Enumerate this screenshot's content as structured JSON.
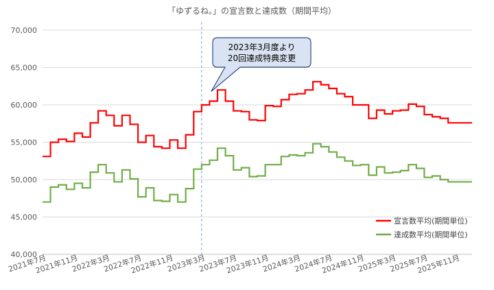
{
  "chart_data": {
    "type": "line",
    "title": "「ゆずるね。」の宣言数と達成数（期間平均）",
    "xlabel": "",
    "ylabel": "",
    "ylim": [
      40000,
      70000
    ],
    "yticks": [
      40000,
      45000,
      50000,
      55000,
      60000,
      65000,
      70000
    ],
    "ytick_labels": [
      "40,000",
      "45,000",
      "50,000",
      "55,000",
      "60,000",
      "65,000",
      "70,000"
    ],
    "step": true,
    "grid": "horizontal",
    "legend_position": "bottom-right",
    "x": [
      "2021年7月",
      "2021年8月",
      "2021年9月",
      "2021年10月",
      "2021年11月",
      "2021年12月",
      "2022年1月",
      "2022年2月",
      "2022年3月",
      "2022年4月",
      "2022年5月",
      "2022年6月",
      "2022年7月",
      "2022年8月",
      "2022年9月",
      "2022年10月",
      "2022年11月",
      "2022年12月",
      "2023年1月",
      "2023年2月",
      "2023年3月",
      "2023年4月",
      "2023年5月",
      "2023年6月",
      "2023年7月",
      "2023年8月",
      "2023年9月",
      "2023年10月",
      "2023年11月",
      "2023年12月",
      "2024年1月",
      "2024年2月",
      "2024年3月",
      "2024年4月",
      "2024年5月",
      "2024年6月",
      "2024年7月",
      "2024年8月",
      "2024年9月",
      "2024年10月",
      "2024年11月",
      "2024年12月",
      "2025年1月",
      "2025年2月",
      "2025年3月",
      "2025年4月",
      "2025年5月",
      "2025年6月",
      "2025年7月",
      "2025年8月",
      "2025年9月",
      "2025年10月",
      "2025年11月",
      "2025年12月"
    ],
    "xtick_labels": [
      "2021年7月",
      "2021年11月",
      "2022年3月",
      "2022年7月",
      "2022年11月",
      "2023年3月",
      "2023年7月",
      "2023年11月",
      "2024年3月",
      "2024年7月",
      "2024年11月",
      "2025年3月",
      "2025年7月",
      "2025年11月"
    ],
    "xtick_indices": [
      0,
      4,
      8,
      12,
      16,
      20,
      24,
      28,
      32,
      36,
      40,
      44,
      48,
      52
    ],
    "series": [
      {
        "name": "宣言数平均(期間単位)",
        "color": "#ff0000",
        "values": [
          53100,
          55000,
          55400,
          55100,
          56200,
          55700,
          57600,
          59200,
          58600,
          57200,
          58600,
          57400,
          55000,
          55900,
          54400,
          54200,
          55300,
          54200,
          56000,
          59100,
          60000,
          60500,
          62000,
          60500,
          59200,
          59100,
          58000,
          57900,
          59900,
          59800,
          60700,
          61400,
          61500,
          62000,
          63100,
          62700,
          62200,
          61500,
          61100,
          60000,
          60000,
          58200,
          59300,
          58800,
          59200,
          59300,
          60100,
          59800,
          58700,
          58400,
          58200,
          57600,
          57600,
          57600
        ]
      },
      {
        "name": "達成数平均(期間単位)",
        "color": "#70ad47",
        "values": [
          47000,
          49000,
          49300,
          48700,
          49500,
          48900,
          51000,
          52000,
          50900,
          49700,
          51300,
          50100,
          47700,
          48900,
          47200,
          47100,
          48000,
          47000,
          48800,
          51400,
          52000,
          52600,
          54200,
          53200,
          51300,
          51600,
          50400,
          50500,
          52000,
          52000,
          53100,
          53300,
          53200,
          53600,
          54800,
          54400,
          53700,
          53000,
          52500,
          51900,
          52000,
          50600,
          51700,
          50900,
          51000,
          51200,
          52000,
          51500,
          50300,
          50500,
          50000,
          49700,
          49700,
          49700
        ]
      }
    ],
    "annotation": {
      "lines": [
        "2023年3月度より",
        "20回達成特典変更"
      ],
      "at_x": "2023年3月",
      "marker": "vertical-dashed-line",
      "fill_color": "#dae3f3",
      "border_color": "#2f4b7c"
    }
  }
}
